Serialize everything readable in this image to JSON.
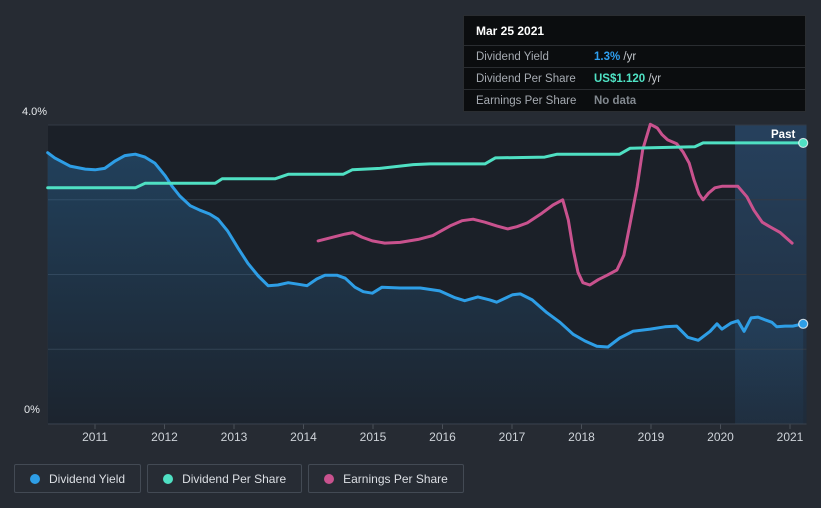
{
  "tooltip": {
    "date": "Mar 25 2021",
    "rows": [
      {
        "label": "Dividend Yield",
        "value": "1.3%",
        "suffix": " /yr",
        "value_color": "#2f9ff0"
      },
      {
        "label": "Dividend Per Share",
        "value": "US$1.120",
        "suffix": " /yr",
        "value_color": "#4fe3c5"
      },
      {
        "label": "Earnings Per Share",
        "value": "No data",
        "suffix": "",
        "value_color": "#82888f"
      }
    ]
  },
  "chart": {
    "past_label": "Past",
    "y_top_label": "4.0%",
    "y_bottom_label": "0%"
  },
  "legend": [
    {
      "label": "Dividend Yield",
      "color": "#2e9ee6"
    },
    {
      "label": "Dividend Per Share",
      "color": "#4fe0c3"
    },
    {
      "label": "Earnings Per Share",
      "color": "#c9528e"
    }
  ],
  "chart_data": {
    "type": "line",
    "title": "Dividend history",
    "x_ticks": [
      2011,
      2012,
      2013,
      2014,
      2015,
      2016,
      2017,
      2018,
      2019,
      2020,
      2021
    ],
    "x_range": [
      2010.32,
      2021.24
    ],
    "ylim": [
      0,
      4
    ],
    "y_unit": "percent of 0-4% axis",
    "gridline_interval": 1,
    "grid": true,
    "legend_position": "bottom",
    "past_band_start": 2020.21,
    "annotations": [
      "Past"
    ],
    "series": [
      {
        "name": "Dividend Yield",
        "color": "#2e9ee6",
        "area_fill": true,
        "end_marker": true,
        "points": [
          [
            2010.32,
            3.63
          ],
          [
            2010.42,
            3.56
          ],
          [
            2010.64,
            3.45
          ],
          [
            2010.86,
            3.41
          ],
          [
            2011.0,
            3.4
          ],
          [
            2011.14,
            3.42
          ],
          [
            2011.29,
            3.52
          ],
          [
            2011.43,
            3.59
          ],
          [
            2011.58,
            3.61
          ],
          [
            2011.72,
            3.57
          ],
          [
            2011.86,
            3.49
          ],
          [
            2012.01,
            3.32
          ],
          [
            2012.11,
            3.18
          ],
          [
            2012.22,
            3.05
          ],
          [
            2012.37,
            2.92
          ],
          [
            2012.51,
            2.86
          ],
          [
            2012.65,
            2.81
          ],
          [
            2012.77,
            2.74
          ],
          [
            2012.91,
            2.58
          ],
          [
            2013.06,
            2.35
          ],
          [
            2013.2,
            2.15
          ],
          [
            2013.35,
            1.98
          ],
          [
            2013.49,
            1.85
          ],
          [
            2013.63,
            1.86
          ],
          [
            2013.78,
            1.89
          ],
          [
            2013.92,
            1.87
          ],
          [
            2014.05,
            1.85
          ],
          [
            2014.19,
            1.94
          ],
          [
            2014.31,
            1.99
          ],
          [
            2014.48,
            1.99
          ],
          [
            2014.6,
            1.95
          ],
          [
            2014.74,
            1.83
          ],
          [
            2014.86,
            1.77
          ],
          [
            2014.99,
            1.75
          ],
          [
            2015.13,
            1.83
          ],
          [
            2015.39,
            1.82
          ],
          [
            2015.68,
            1.82
          ],
          [
            2015.96,
            1.78
          ],
          [
            2016.18,
            1.69
          ],
          [
            2016.32,
            1.65
          ],
          [
            2016.51,
            1.7
          ],
          [
            2016.68,
            1.66
          ],
          [
            2016.78,
            1.63
          ],
          [
            2017.01,
            1.73
          ],
          [
            2017.12,
            1.74
          ],
          [
            2017.29,
            1.66
          ],
          [
            2017.5,
            1.49
          ],
          [
            2017.69,
            1.36
          ],
          [
            2017.88,
            1.2
          ],
          [
            2018.05,
            1.11
          ],
          [
            2018.22,
            1.04
          ],
          [
            2018.38,
            1.03
          ],
          [
            2018.55,
            1.15
          ],
          [
            2018.74,
            1.24
          ],
          [
            2018.99,
            1.27
          ],
          [
            2019.2,
            1.3
          ],
          [
            2019.37,
            1.31
          ],
          [
            2019.53,
            1.16
          ],
          [
            2019.68,
            1.12
          ],
          [
            2019.85,
            1.24
          ],
          [
            2019.95,
            1.34
          ],
          [
            2020.02,
            1.27
          ],
          [
            2020.15,
            1.35
          ],
          [
            2020.25,
            1.38
          ],
          [
            2020.34,
            1.24
          ],
          [
            2020.44,
            1.42
          ],
          [
            2020.54,
            1.43
          ],
          [
            2020.65,
            1.39
          ],
          [
            2020.74,
            1.36
          ],
          [
            2020.81,
            1.3
          ],
          [
            2020.93,
            1.31
          ],
          [
            2021.04,
            1.31
          ],
          [
            2021.19,
            1.34
          ]
        ]
      },
      {
        "name": "Earnings Per Share",
        "color": "#c9528e",
        "area_fill": false,
        "end_marker": false,
        "points": [
          [
            2014.21,
            2.45
          ],
          [
            2014.38,
            2.49
          ],
          [
            2014.6,
            2.54
          ],
          [
            2014.71,
            2.56
          ],
          [
            2014.84,
            2.5
          ],
          [
            2014.99,
            2.45
          ],
          [
            2015.17,
            2.42
          ],
          [
            2015.39,
            2.43
          ],
          [
            2015.65,
            2.47
          ],
          [
            2015.86,
            2.52
          ],
          [
            2016.11,
            2.65
          ],
          [
            2016.28,
            2.72
          ],
          [
            2016.44,
            2.74
          ],
          [
            2016.61,
            2.7
          ],
          [
            2016.78,
            2.65
          ],
          [
            2016.94,
            2.61
          ],
          [
            2017.07,
            2.64
          ],
          [
            2017.22,
            2.69
          ],
          [
            2017.43,
            2.82
          ],
          [
            2017.59,
            2.93
          ],
          [
            2017.73,
            3.0
          ],
          [
            2017.81,
            2.73
          ],
          [
            2017.88,
            2.33
          ],
          [
            2017.95,
            2.03
          ],
          [
            2018.02,
            1.89
          ],
          [
            2018.12,
            1.86
          ],
          [
            2018.24,
            1.93
          ],
          [
            2018.37,
            1.99
          ],
          [
            2018.51,
            2.06
          ],
          [
            2018.61,
            2.26
          ],
          [
            2018.7,
            2.69
          ],
          [
            2018.8,
            3.17
          ],
          [
            2018.88,
            3.67
          ],
          [
            2018.99,
            4.01
          ],
          [
            2019.09,
            3.96
          ],
          [
            2019.16,
            3.87
          ],
          [
            2019.24,
            3.8
          ],
          [
            2019.37,
            3.75
          ],
          [
            2019.46,
            3.64
          ],
          [
            2019.55,
            3.49
          ],
          [
            2019.62,
            3.26
          ],
          [
            2019.69,
            3.08
          ],
          [
            2019.75,
            3.0
          ],
          [
            2019.83,
            3.09
          ],
          [
            2019.92,
            3.16
          ],
          [
            2020.02,
            3.18
          ],
          [
            2020.25,
            3.18
          ],
          [
            2020.38,
            3.04
          ],
          [
            2020.48,
            2.86
          ],
          [
            2020.6,
            2.7
          ],
          [
            2020.71,
            2.64
          ],
          [
            2020.86,
            2.56
          ],
          [
            2021.03,
            2.42
          ]
        ]
      },
      {
        "name": "Dividend Per Share",
        "color": "#4fe0c3",
        "area_fill": false,
        "end_marker": true,
        "points": [
          [
            2010.32,
            3.16
          ],
          [
            2011.58,
            3.16
          ],
          [
            2011.72,
            3.22
          ],
          [
            2012.73,
            3.22
          ],
          [
            2012.83,
            3.28
          ],
          [
            2013.59,
            3.28
          ],
          [
            2013.78,
            3.34
          ],
          [
            2014.57,
            3.34
          ],
          [
            2014.7,
            3.4
          ],
          [
            2015.1,
            3.42
          ],
          [
            2015.58,
            3.47
          ],
          [
            2015.82,
            3.48
          ],
          [
            2016.61,
            3.48
          ],
          [
            2016.76,
            3.56
          ],
          [
            2017.47,
            3.57
          ],
          [
            2017.65,
            3.61
          ],
          [
            2018.55,
            3.61
          ],
          [
            2018.7,
            3.69
          ],
          [
            2019.63,
            3.71
          ],
          [
            2019.75,
            3.76
          ],
          [
            2021.19,
            3.76
          ]
        ]
      }
    ]
  }
}
